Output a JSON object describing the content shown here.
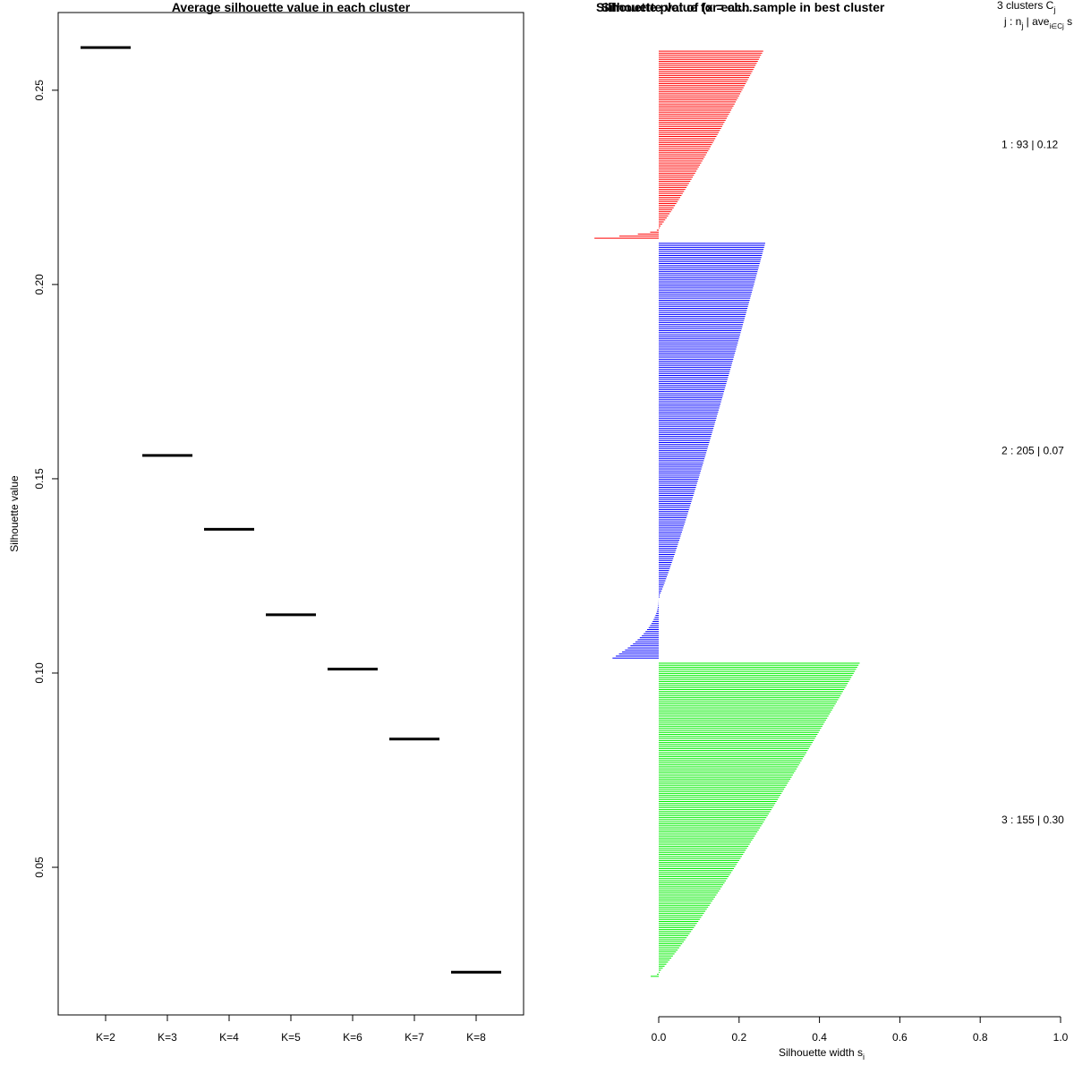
{
  "chart_data": [
    {
      "type": "line",
      "chart_style": "horizontal-segments",
      "title": "Average silhouette value in each cluster",
      "xlabel": "",
      "ylabel": "Silhouette value",
      "categories": [
        "K=2",
        "K=3",
        "K=4",
        "K=5",
        "K=6",
        "K=7",
        "K=8"
      ],
      "values": [
        0.261,
        0.156,
        0.137,
        0.115,
        0.101,
        0.083,
        0.023
      ],
      "ylim": [
        0.012,
        0.27
      ],
      "yticks": [
        0.05,
        0.1,
        0.15,
        0.2,
        0.25
      ],
      "ytick_labels": [
        "0.05",
        "0.10",
        "0.15",
        "0.20",
        "0.25"
      ],
      "line_color": "#000000",
      "grid": false
    },
    {
      "type": "bar",
      "orientation": "horizontal",
      "title": "Silhouette value for each sample in best cluster",
      "overlapping_title": "Silhouette plot of (x = clu...",
      "xlabel": "Silhouette width s",
      "xlabel_subscript": "i",
      "xlim": [
        0,
        1
      ],
      "xticks": [
        0.0,
        0.2,
        0.4,
        0.6,
        0.8,
        1.0
      ],
      "xtick_labels": [
        "0.0",
        "0.2",
        "0.4",
        "0.6",
        "0.8",
        "1.0"
      ],
      "legend_header": {
        "line1": "3 clusters C",
        "line1_subscript": "j",
        "line2": "j : n",
        "line2_subscript_1": "j",
        "line2_mid": " | ave",
        "line2_subscript_2": "i∈Cj",
        "line2_end": " s"
      },
      "series": [
        {
          "name": "1",
          "n": 93,
          "avg": "0.12",
          "label": "1 :  93  |  0.12",
          "color": "#ff0000",
          "max": 0.26,
          "min": -0.16,
          "neg_count": 5
        },
        {
          "name": "2",
          "n": 205,
          "avg": "0.07",
          "label": "2 :  205  |  0.07",
          "color": "#0000ff",
          "max": 0.265,
          "min": -0.115,
          "neg_count": 30
        },
        {
          "name": "3",
          "n": 155,
          "avg": "0.30",
          "label": "3 :  155  |  0.30",
          "color": "#00ee00",
          "max": 0.5,
          "min": -0.02,
          "neg_count": 2
        }
      ]
    }
  ]
}
